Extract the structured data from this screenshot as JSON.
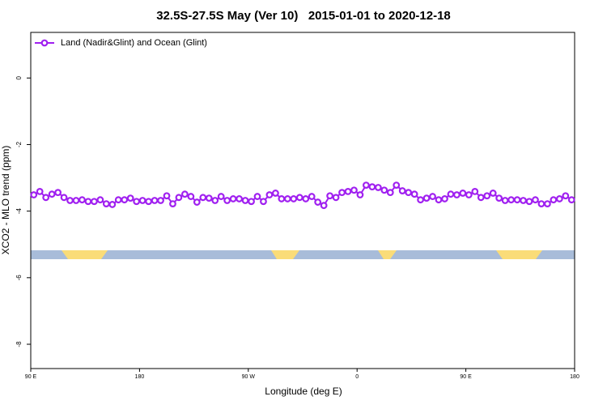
{
  "chart_data": {
    "type": "line",
    "title": "32.5S-27.5S May (Ver 10)   2015-01-01 to 2020-12-18",
    "x_label": "Longitude (deg E)",
    "y_label": "XCO2 - MLO trend (ppm)",
    "legend": "top-left",
    "xlim": [
      90,
      540
    ],
    "ylim": [
      -8.73,
      1.37
    ],
    "xticks": [
      {
        "value": 90,
        "label": "90 E"
      },
      {
        "value": 180,
        "label": "180"
      },
      {
        "value": 270,
        "label": "90 W"
      },
      {
        "value": 360,
        "label": "0"
      },
      {
        "value": 450,
        "label": "90 E"
      },
      {
        "value": 540,
        "label": "180"
      }
    ],
    "yticks": [
      0,
      -2,
      -4,
      -6,
      -8
    ],
    "x": [
      92.5,
      97.5,
      102.5,
      107.5,
      112.5,
      117.5,
      122.5,
      127.5,
      132.5,
      137.5,
      142.5,
      147.5,
      152.5,
      157.5,
      162.5,
      167.5,
      172.5,
      177.5,
      182.5,
      187.5,
      192.5,
      197.5,
      202.5,
      207.5,
      212.5,
      217.5,
      222.5,
      227.5,
      232.5,
      237.5,
      242.5,
      247.5,
      252.5,
      257.5,
      262.5,
      267.5,
      272.5,
      277.5,
      282.5,
      287.5,
      292.5,
      297.5,
      302.5,
      307.5,
      312.5,
      317.5,
      322.5,
      327.5,
      332.5,
      337.5,
      342.5,
      347.5,
      352.5,
      357.5,
      362.5,
      367.5,
      372.5,
      377.5,
      382.5,
      387.5,
      392.5,
      397.5,
      402.5,
      407.5,
      412.5,
      417.5,
      422.5,
      427.5,
      432.5,
      437.5,
      442.5,
      447.5,
      452.5,
      457.5,
      462.5,
      467.5,
      472.5,
      477.5,
      482.5,
      487.5,
      492.5,
      497.5,
      502.5,
      507.5,
      512.5,
      517.5,
      522.5,
      527.5,
      532.5,
      537.5
    ],
    "series": [
      {
        "name": "Land (Nadir&Glint) and Ocean (Glint)",
        "color": "#a020f0",
        "values": [
          -3.51,
          -3.41,
          -3.59,
          -3.49,
          -3.44,
          -3.59,
          -3.68,
          -3.68,
          -3.66,
          -3.71,
          -3.71,
          -3.66,
          -3.78,
          -3.8,
          -3.66,
          -3.66,
          -3.61,
          -3.71,
          -3.68,
          -3.71,
          -3.68,
          -3.68,
          -3.54,
          -3.78,
          -3.59,
          -3.49,
          -3.56,
          -3.73,
          -3.59,
          -3.61,
          -3.68,
          -3.56,
          -3.68,
          -3.63,
          -3.63,
          -3.68,
          -3.71,
          -3.56,
          -3.71,
          -3.51,
          -3.46,
          -3.63,
          -3.63,
          -3.63,
          -3.59,
          -3.63,
          -3.56,
          -3.73,
          -3.83,
          -3.54,
          -3.59,
          -3.44,
          -3.41,
          -3.37,
          -3.51,
          -3.22,
          -3.27,
          -3.29,
          -3.37,
          -3.44,
          -3.22,
          -3.39,
          -3.44,
          -3.49,
          -3.66,
          -3.61,
          -3.56,
          -3.66,
          -3.63,
          -3.49,
          -3.51,
          -3.46,
          -3.51,
          -3.41,
          -3.59,
          -3.54,
          -3.46,
          -3.61,
          -3.68,
          -3.66,
          -3.66,
          -3.68,
          -3.71,
          -3.66,
          -3.78,
          -3.78,
          -3.66,
          -3.63,
          -3.54,
          -3.66
        ]
      }
    ]
  }
}
